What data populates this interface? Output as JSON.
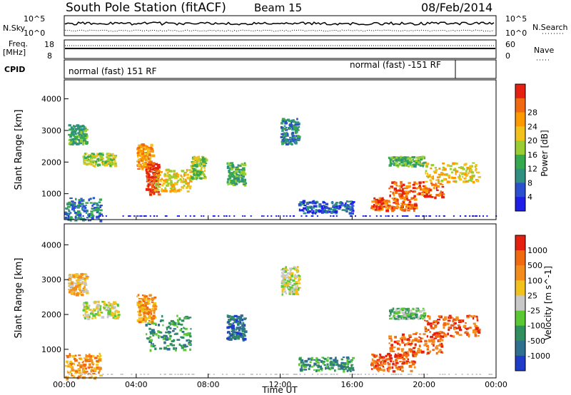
{
  "header": {
    "title": "South Pole Station (fitACF)",
    "beam": "Beam 15",
    "date": "08/Feb/2014"
  },
  "aux": {
    "nsky_label": "N.Sky",
    "nsearch_label": "N.Search",
    "nsky_top": "10^5",
    "nsky_bottom": "10^0",
    "nsearch_top": "10^5",
    "nsearch_bottom": "10^0",
    "freq_label_1": "Freq.",
    "freq_label_2": "[MHz]",
    "freq_top": "18",
    "freq_bottom": "8",
    "nave_label": "Nave",
    "nave_top": "60",
    "nave_bottom": "0",
    "cpid_label": "CPID",
    "cpid_mode_1": "normal (fast) 151 RF",
    "cpid_mode_2": "normal (fast) -151 RF"
  },
  "chart_data": [
    {
      "type": "heatmap",
      "name": "power",
      "ylabel": "Slant Range [km]",
      "ylim": [
        180,
        4600
      ],
      "yticks": [
        "1000",
        "2000",
        "3000",
        "4000"
      ],
      "xlim_hours": [
        0,
        24
      ],
      "colorbar": {
        "label": "Power [dB]",
        "ticks": [
          "4",
          "8",
          "12",
          "16",
          "20",
          "24",
          "28"
        ],
        "colors": [
          "#1e1ee6",
          "#2a4fd0",
          "#2f8f80",
          "#36a84e",
          "#9acd32",
          "#f2c21c",
          "#ff9900",
          "#f26a10",
          "#e52010"
        ]
      },
      "echo_bands": [
        {
          "t0": 0.0,
          "t1": 2.0,
          "r0": 180,
          "r1": 900,
          "level": 2
        },
        {
          "t0": 0.2,
          "t1": 1.2,
          "r0": 2600,
          "r1": 3200,
          "level": 3
        },
        {
          "t0": 1.0,
          "t1": 2.8,
          "r0": 1900,
          "r1": 2300,
          "level": 4
        },
        {
          "t0": 4.0,
          "t1": 4.9,
          "r0": 1800,
          "r1": 2600,
          "level": 6
        },
        {
          "t0": 4.5,
          "t1": 5.2,
          "r0": 1000,
          "r1": 2000,
          "level": 8
        },
        {
          "t0": 5.0,
          "t1": 7.0,
          "r0": 1100,
          "r1": 1800,
          "level": 5
        },
        {
          "t0": 7.0,
          "t1": 7.8,
          "r0": 1500,
          "r1": 2200,
          "level": 4
        },
        {
          "t0": 9.0,
          "t1": 10.0,
          "r0": 1300,
          "r1": 2000,
          "level": 3
        },
        {
          "t0": 12.0,
          "t1": 13.0,
          "r0": 2600,
          "r1": 3400,
          "level": 2
        },
        {
          "t0": 13.0,
          "t1": 16.0,
          "r0": 400,
          "r1": 800,
          "level": 1
        },
        {
          "t0": 17.0,
          "t1": 19.5,
          "r0": 500,
          "r1": 900,
          "level": 7
        },
        {
          "t0": 18.0,
          "t1": 21.0,
          "r0": 900,
          "r1": 1400,
          "level": 7
        },
        {
          "t0": 18.0,
          "t1": 20.0,
          "r0": 1900,
          "r1": 2200,
          "level": 3
        },
        {
          "t0": 20.0,
          "t1": 23.0,
          "r0": 1400,
          "r1": 2000,
          "level": 5
        }
      ]
    },
    {
      "type": "heatmap",
      "name": "velocity",
      "ylabel": "Slant Range [km]",
      "xlabel": "Time UT",
      "ylim": [
        180,
        4600
      ],
      "yticks": [
        "1000",
        "2000",
        "3000",
        "4000"
      ],
      "xticks": [
        "00:00",
        "04:00",
        "08:00",
        "12:00",
        "16:00",
        "20:00",
        "00:00"
      ],
      "xlim_hours": [
        0,
        24
      ],
      "colorbar": {
        "label": "Velocity [m s^-1]",
        "ticks": [
          "1000",
          "500",
          "100",
          "25",
          "-25",
          "-100",
          "-500",
          "-1000"
        ],
        "colors": [
          "#1e3cc8",
          "#2f6f8f",
          "#2f8f5f",
          "#5ac832",
          "#c8c8c8",
          "#f2c21c",
          "#f28c1c",
          "#f26a10",
          "#e52010"
        ]
      },
      "echo_bands": [
        {
          "t0": 0.0,
          "t1": 2.0,
          "r0": 180,
          "r1": 900,
          "level": 6
        },
        {
          "t0": 0.2,
          "t1": 1.2,
          "r0": 2600,
          "r1": 3200,
          "level": 5
        },
        {
          "t0": 1.0,
          "t1": 3.0,
          "r0": 1900,
          "r1": 2400,
          "level": 4
        },
        {
          "t0": 4.0,
          "t1": 5.0,
          "r0": 1800,
          "r1": 2600,
          "level": 6
        },
        {
          "t0": 4.5,
          "t1": 7.0,
          "r0": 1000,
          "r1": 2000,
          "level": 2
        },
        {
          "t0": 9.0,
          "t1": 10.0,
          "r0": 1300,
          "r1": 2000,
          "level": 1
        },
        {
          "t0": 12.0,
          "t1": 13.0,
          "r0": 2600,
          "r1": 3400,
          "level": 4
        },
        {
          "t0": 13.0,
          "t1": 16.0,
          "r0": 400,
          "r1": 800,
          "level": 2
        },
        {
          "t0": 17.0,
          "t1": 19.5,
          "r0": 400,
          "r1": 900,
          "level": 7
        },
        {
          "t0": 18.0,
          "t1": 21.0,
          "r0": 900,
          "r1": 1500,
          "level": 7
        },
        {
          "t0": 18.0,
          "t1": 20.0,
          "r0": 1900,
          "r1": 2200,
          "level": 3
        },
        {
          "t0": 20.0,
          "t1": 23.0,
          "r0": 1400,
          "r1": 2000,
          "level": 7
        }
      ]
    }
  ]
}
